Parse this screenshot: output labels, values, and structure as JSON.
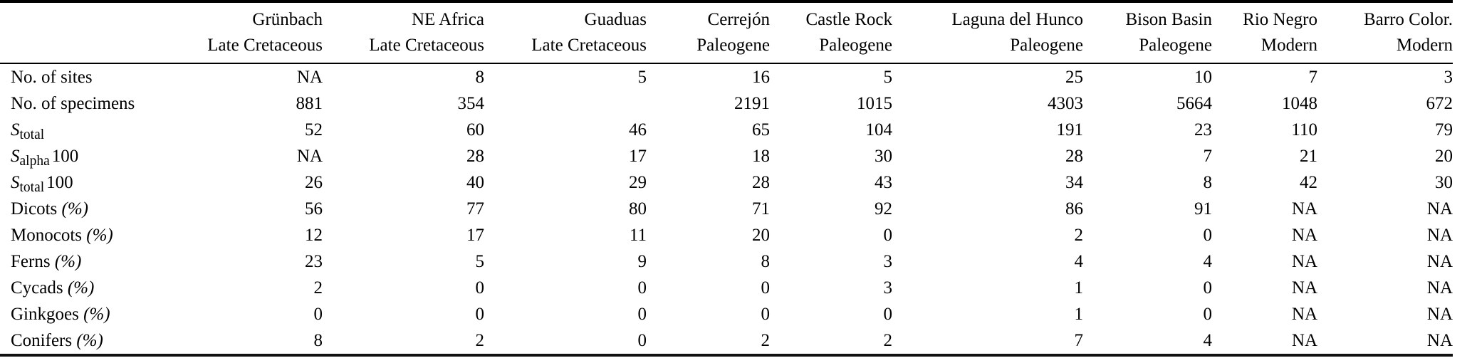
{
  "page": {
    "background": "#ffffff",
    "text_color": "#000000",
    "rule_color": "#000000"
  },
  "table": {
    "row_label_header": "",
    "pct_suffix": "(%)",
    "s_symbol": "S",
    "na_text": "NA",
    "columns": [
      {
        "name": "Grünbach",
        "era": "Late Cretaceous"
      },
      {
        "name": "NE Africa",
        "era": "Late Cretaceous"
      },
      {
        "name": "Guaduas",
        "era": "Late Cretaceous"
      },
      {
        "name": "Cerrejón",
        "era": "Paleogene"
      },
      {
        "name": "Castle Rock",
        "era": "Paleogene"
      },
      {
        "name": "Laguna del Hunco",
        "era": "Paleogene"
      },
      {
        "name": "Bison Basin",
        "era": "Paleogene"
      },
      {
        "name": "Rio Negro",
        "era": "Modern"
      },
      {
        "name": "Barro Color.",
        "era": "Modern"
      }
    ],
    "rows": [
      {
        "label": {
          "kind": "text",
          "text": "No. of sites"
        },
        "values": [
          "NA",
          "8",
          "5",
          "16",
          "5",
          "25",
          "10",
          "7",
          "3"
        ]
      },
      {
        "label": {
          "kind": "text",
          "text": "No. of specimens"
        },
        "values": [
          "881",
          "354",
          "",
          "2191",
          "1015",
          "4303",
          "5664",
          "1048",
          "672"
        ]
      },
      {
        "label": {
          "kind": "s",
          "sub": "total",
          "suffix": ""
        },
        "values": [
          "52",
          "60",
          "46",
          "65",
          "104",
          "191",
          "23",
          "110",
          "79"
        ]
      },
      {
        "label": {
          "kind": "s",
          "sub": "alpha",
          "suffix": "100"
        },
        "values": [
          "NA",
          "28",
          "17",
          "18",
          "30",
          "28",
          "7",
          "21",
          "20"
        ]
      },
      {
        "label": {
          "kind": "s",
          "sub": "total",
          "suffix": "100"
        },
        "values": [
          "26",
          "40",
          "29",
          "28",
          "43",
          "34",
          "8",
          "42",
          "30"
        ]
      },
      {
        "label": {
          "kind": "pct",
          "text": "Dicots"
        },
        "values": [
          "56",
          "77",
          "80",
          "71",
          "92",
          "86",
          "91",
          "NA",
          "NA"
        ]
      },
      {
        "label": {
          "kind": "pct",
          "text": "Monocots"
        },
        "values": [
          "12",
          "17",
          "11",
          "20",
          "0",
          "2",
          "0",
          "NA",
          "NA"
        ]
      },
      {
        "label": {
          "kind": "pct",
          "text": "Ferns"
        },
        "values": [
          "23",
          "5",
          "9",
          "8",
          "3",
          "4",
          "4",
          "NA",
          "NA"
        ]
      },
      {
        "label": {
          "kind": "pct",
          "text": "Cycads"
        },
        "values": [
          "2",
          "0",
          "0",
          "0",
          "3",
          "1",
          "0",
          "NA",
          "NA"
        ]
      },
      {
        "label": {
          "kind": "pct",
          "text": "Ginkgoes"
        },
        "values": [
          "0",
          "0",
          "0",
          "0",
          "0",
          "1",
          "0",
          "NA",
          "NA"
        ]
      },
      {
        "label": {
          "kind": "pct",
          "text": "Conifers"
        },
        "values": [
          "8",
          "2",
          "0",
          "2",
          "2",
          "7",
          "4",
          "NA",
          "NA"
        ]
      }
    ]
  }
}
